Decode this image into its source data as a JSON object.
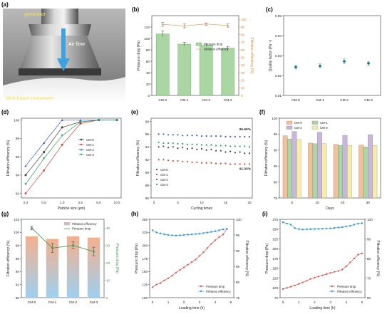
{
  "panels": {
    "a": {
      "letter": "(a)",
      "label_generator": "generator",
      "label_airflow": "Air flow",
      "label_nonwoven": "Melt-blown nonwoven"
    }
  },
  "chart_data": [
    {
      "id": "b",
      "letter": "(b)",
      "type": "bar",
      "categories": [
        "CM-0",
        "CM-1",
        "CM-2",
        "CM-3"
      ],
      "series": [
        {
          "name": "Pressure drop",
          "axis": "left",
          "kind": "bar",
          "values": [
            108,
            90,
            88,
            83
          ],
          "errors": [
            5,
            3,
            2,
            3
          ]
        },
        {
          "name": "Filtration efficiency",
          "axis": "right",
          "kind": "line",
          "values": [
            93.5,
            91.5,
            94,
            92
          ],
          "errors": [
            2.5,
            2.5,
            1.5,
            2
          ]
        }
      ],
      "ylabel": "Pressure drop (Pa)",
      "ylim": [
        0,
        140
      ],
      "yticks": [
        0,
        20,
        40,
        60,
        80,
        100,
        120
      ],
      "y2label": "Filtration efficiency (%)",
      "y2lim": [
        0,
        105
      ],
      "y2ticks": [
        0,
        10,
        20,
        30,
        40,
        50,
        60,
        70,
        80,
        90,
        100
      ],
      "legend_position": "middle-right",
      "colors": {
        "bar": "#a9d6a3",
        "bar_edge": "#5c9e57",
        "line": "#f0a05a",
        "y2axis": "#e8832a"
      }
    },
    {
      "id": "c",
      "letter": "(c)",
      "type": "scatter",
      "categories": [
        "CM-0",
        "CM-1",
        "CM-2",
        "CM-3"
      ],
      "values": [
        0.0242,
        0.0248,
        0.0271,
        0.0261
      ],
      "errors": [
        0.001,
        0.001,
        0.0012,
        0.001
      ],
      "ylabel": "Quality factor (Pa⁻¹)",
      "ylim": [
        0.01,
        0.05
      ],
      "yticks": [
        0.01,
        0.02,
        0.03,
        0.04,
        0.05
      ],
      "colors": {
        "point": "#1e7a78"
      }
    },
    {
      "id": "d",
      "letter": "(d)",
      "type": "line",
      "x": [
        "0.3",
        "0.5",
        "1.0",
        "2.5",
        "5.0",
        "10.0"
      ],
      "series": [
        {
          "name": "CM-0",
          "values": [
            94.0,
            96.5,
            99.2,
            99.8,
            100,
            100
          ],
          "color": "#444444",
          "marker": "square"
        },
        {
          "name": "CM-1",
          "values": [
            92.0,
            94.5,
            97.3,
            99.6,
            100,
            100
          ],
          "color": "#d9453a",
          "marker": "circle"
        },
        {
          "name": "CM-2",
          "values": [
            95.0,
            97.5,
            100,
            100,
            100,
            100
          ],
          "color": "#3b5bd9",
          "marker": "triangle"
        },
        {
          "name": "CM-3",
          "values": [
            93.0,
            95.8,
            98.3,
            99.8,
            100,
            100
          ],
          "color": "#2aa35c",
          "marker": "triangle-down"
        }
      ],
      "xlabel": "Particle size (μm)",
      "ylabel": "Filtration efficiency (%)",
      "ylim": [
        91.5,
        100.2
      ],
      "yticks": [
        92,
        94,
        96,
        98,
        100
      ],
      "legend_position": "center-right"
    },
    {
      "id": "e",
      "letter": "(e)",
      "type": "scatter",
      "x": [
        1,
        2,
        3,
        4,
        5,
        6,
        7,
        8,
        9,
        10,
        11,
        12,
        13,
        14,
        15,
        16,
        17,
        18,
        19,
        20
      ],
      "series": [
        {
          "name": "CM-0",
          "values": [
            94.0,
            94.1,
            93.9,
            94.0,
            93.8,
            93.9,
            93.7,
            93.8,
            93.6,
            93.7,
            93.5,
            93.6,
            93.4,
            93.4,
            93.2,
            93.3,
            93.1,
            93.2,
            93.0,
            93.0
          ],
          "color": "#444444"
        },
        {
          "name": "CM-1",
          "values": [
            92.0,
            92.0,
            91.9,
            91.8,
            91.8,
            91.7,
            91.7,
            91.6,
            91.6,
            91.5,
            91.5,
            91.5,
            91.4,
            91.4,
            91.4,
            91.3,
            91.3,
            91.3,
            91.3,
            91.3
          ],
          "color": "#d9453a"
        },
        {
          "name": "CM-2",
          "values": [
            96.0,
            96.0,
            95.9,
            95.9,
            95.9,
            95.8,
            95.8,
            95.8,
            95.8,
            95.7,
            95.7,
            95.7,
            95.7,
            95.7,
            95.6,
            95.6,
            95.6,
            95.6,
            95.6,
            95.6
          ],
          "color": "#3b5bd9"
        },
        {
          "name": "CM-3",
          "values": [
            94.7,
            94.6,
            94.6,
            94.6,
            94.5,
            94.5,
            94.4,
            94.4,
            94.4,
            94.3,
            94.3,
            94.3,
            94.2,
            94.2,
            94.2,
            94.1,
            94.1,
            94.1,
            94.1,
            94.0
          ],
          "color": "#2aa35c"
        }
      ],
      "xlabel": "Cycling times",
      "ylabel": "Filtration efficiency (%)",
      "xlim": [
        0,
        20
      ],
      "xticks": [
        0,
        5,
        10,
        15,
        20
      ],
      "ylim": [
        86,
        98.5
      ],
      "yticks": [
        86,
        88,
        90,
        92,
        94,
        96,
        98
      ],
      "annotations": [
        "95.60%",
        "91.33%"
      ],
      "legend_position": "bottom-left"
    },
    {
      "id": "f",
      "letter": "(f)",
      "type": "bar",
      "categories": [
        "0",
        "10",
        "20",
        "30"
      ],
      "series": [
        {
          "name": "CM-0",
          "values": [
            94.5,
            92.2,
            91.8,
            91.6
          ],
          "color": "#f4c09a"
        },
        {
          "name": "CM-1",
          "values": [
            93.5,
            92.0,
            91.5,
            91.0
          ],
          "color": "#a9d6a3"
        },
        {
          "name": "CM-2",
          "values": [
            95.8,
            95.6,
            94.6,
            94.8
          ],
          "color": "#c9b6dd"
        },
        {
          "name": "CM-3",
          "values": [
            93.3,
            92.0,
            91.5,
            91.4
          ],
          "color": "#f6eea6"
        }
      ],
      "xlabel": "Days",
      "ylabel": "Filtration efficiency (%)",
      "ylim": [
        75,
        100
      ],
      "yticks": [
        75,
        80,
        85,
        90,
        95,
        100
      ],
      "legend_position": "top"
    },
    {
      "id": "g",
      "letter": "(g)",
      "type": "bar",
      "categories": [
        "CM-0",
        "CM-1",
        "CM-2",
        "CM-3"
      ],
      "series": [
        {
          "name": "Filtration efficiency",
          "axis": "left",
          "kind": "bar",
          "values": [
            99.4,
            99.0,
            99.4,
            99.2
          ]
        },
        {
          "name": "Pressure drop",
          "axis": "right",
          "kind": "line",
          "values": [
            40.0,
            28.5,
            30.0,
            26.5
          ],
          "errors": [
            1.0,
            2.5,
            2.0,
            2.5
          ]
        }
      ],
      "ylabel": "Filtration efficiency (%)",
      "ylim": [
        90,
        102
      ],
      "yticks": [
        90,
        92,
        94,
        96,
        98,
        100,
        102
      ],
      "y2label": "Pressure drop (Pa)",
      "y2lim": [
        0,
        45
      ],
      "y2ticks": [
        0,
        10,
        20,
        30,
        40
      ],
      "legend_position": "top-right",
      "colors": {
        "bar_top": "#f4b08e",
        "bar_bottom": "#9fd0ef",
        "line": "#3c9a4a"
      }
    },
    {
      "id": "h",
      "letter": "(h)",
      "type": "line",
      "x": [
        0.0,
        0.25,
        0.5,
        0.75,
        1.0,
        1.25,
        1.5,
        1.75,
        2.0,
        2.25,
        2.5,
        2.75,
        3.0,
        3.25,
        3.5,
        3.75,
        4.0,
        4.25,
        4.5,
        4.75
      ],
      "series": [
        {
          "name": "Pressure drop",
          "axis": "left",
          "values": [
            120,
            125,
            128,
            133,
            137,
            142,
            148,
            153,
            158,
            163,
            168,
            173,
            180,
            187,
            195,
            203,
            210,
            216,
            221,
            232
          ],
          "color": "#e04848"
        },
        {
          "name": "Filtration efficiency",
          "axis": "right",
          "values": [
            96.5,
            95.8,
            95.5,
            95.2,
            95.0,
            94.9,
            94.8,
            94.9,
            95.0,
            95.1,
            95.2,
            95.3,
            95.4,
            95.6,
            95.8,
            96.0,
            96.2,
            96.5,
            96.8,
            96.9
          ],
          "color": "#3a9ad9"
        }
      ],
      "xlabel": "Loading time (h)",
      "ylabel": "Pressure drop (Pa)",
      "y2label": "Filtration efficiency (%)",
      "xlim": [
        0,
        5
      ],
      "xticks": [
        0,
        1,
        2,
        3,
        4,
        5
      ],
      "ylim": [
        100,
        250
      ],
      "yticks": [
        100,
        125,
        150,
        175,
        200,
        225,
        250
      ],
      "y2lim": [
        75,
        100
      ],
      "y2ticks": [
        75,
        80,
        85,
        90,
        95,
        100
      ],
      "legend_position": "bottom-right"
    },
    {
      "id": "i",
      "letter": "(i)",
      "type": "line",
      "x": [
        0.0,
        0.25,
        0.5,
        0.75,
        1.0,
        1.25,
        1.5,
        1.75,
        2.0,
        2.25,
        2.5,
        2.75,
        3.0,
        3.25,
        3.5,
        3.75,
        4.0,
        4.25,
        4.5,
        4.75,
        5.0
      ],
      "series": [
        {
          "name": "Pressure drop",
          "axis": "left",
          "values": [
            97,
            100,
            103,
            106,
            110,
            114,
            118,
            123,
            126,
            129,
            132,
            135,
            138,
            141,
            143,
            147,
            155,
            165,
            175,
            185,
            188
          ],
          "color": "#e04848"
        },
        {
          "name": "Filtration efficiency",
          "axis": "right",
          "values": [
            98.5,
            97.8,
            97.3,
            95.5,
            95.0,
            94.8,
            94.9,
            95.0,
            95.0,
            95.1,
            95.2,
            95.3,
            95.4,
            95.6,
            95.8,
            96.0,
            96.3,
            96.7,
            97.3,
            97.8,
            98.0
          ],
          "color": "#3a9ad9"
        }
      ],
      "xlabel": "Loading time (h)",
      "ylabel": "Pressure drop (Pa)",
      "y2label": "Filtration efficiency (%)",
      "xlim": [
        0,
        5
      ],
      "xticks": [
        0,
        1,
        2,
        3,
        4,
        5
      ],
      "ylim": [
        75,
        275
      ],
      "yticks": [
        75,
        100,
        125,
        150,
        175,
        200,
        225,
        250,
        275
      ],
      "y2lim": [
        60,
        100
      ],
      "y2ticks": [
        60,
        70,
        80,
        90,
        100
      ],
      "legend_position": "bottom-right"
    }
  ]
}
